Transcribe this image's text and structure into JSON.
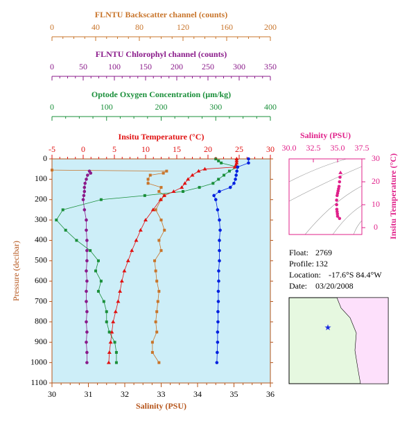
{
  "chart_data": [
    {
      "type": "profile",
      "y_label": "Pressure (decibar)",
      "ylim": [
        0,
        1100
      ],
      "yticks": [
        0,
        100,
        200,
        300,
        400,
        500,
        600,
        700,
        800,
        900,
        1000,
        1100
      ],
      "y_color": "#b5541a",
      "background": "#cdeef8",
      "series": [
        {
          "name": "FLNTU Backscatter channel (counts)",
          "color": "#c8742a",
          "marker": "square",
          "xlim": [
            0,
            200
          ],
          "xticks": [
            0,
            40,
            80,
            120,
            160,
            200
          ],
          "pressure": [
            55,
            60,
            70,
            80,
            100,
            120,
            140,
            160,
            180,
            200,
            250,
            300,
            350,
            400,
            450,
            500,
            550,
            600,
            650,
            700,
            750,
            800,
            850,
            900,
            950,
            1000
          ],
          "values": [
            0,
            105,
            102,
            90,
            88,
            88,
            100,
            98,
            103,
            100,
            95,
            100,
            103,
            98,
            100,
            94,
            95,
            96,
            98,
            97,
            96,
            95,
            96,
            92,
            92,
            98
          ]
        },
        {
          "name": "FLNTU Chlorophyl channel (counts)",
          "color": "#8a1a8a",
          "marker": "circle",
          "xlim": [
            0,
            350
          ],
          "xticks": [
            0,
            50,
            100,
            150,
            200,
            250,
            300,
            350
          ],
          "pressure": [
            60,
            70,
            80,
            100,
            120,
            140,
            160,
            180,
            200,
            250,
            300,
            350,
            400,
            450,
            500,
            550,
            600,
            650,
            700,
            750,
            800,
            850,
            900,
            950,
            1000
          ],
          "values": [
            60,
            62,
            57,
            55,
            53,
            52,
            52,
            51,
            50,
            52,
            55,
            55,
            56,
            56,
            56,
            55,
            56,
            55,
            55,
            56,
            55,
            56,
            55,
            56,
            56
          ]
        },
        {
          "name": "Optode Oxygen Concentration (µm/kg)",
          "color": "#1a8f3a",
          "marker": "square",
          "xlim": [
            0,
            400
          ],
          "xticks": [
            0,
            100,
            200,
            300,
            400
          ],
          "pressure": [
            0,
            10,
            20,
            40,
            60,
            80,
            100,
            120,
            140,
            160,
            180,
            200,
            250,
            300,
            350,
            400,
            450,
            500,
            550,
            600,
            650,
            700,
            750,
            800,
            850,
            900,
            950,
            1000
          ],
          "values": [
            300,
            305,
            310,
            340,
            325,
            315,
            305,
            295,
            270,
            240,
            170,
            90,
            20,
            8,
            25,
            45,
            70,
            85,
            80,
            90,
            85,
            95,
            100,
            100,
            105,
            115,
            118,
            118
          ]
        },
        {
          "name": "Insitu Temperature (°C)",
          "color": "#e01010",
          "marker": "triangle",
          "xlim": [
            -5,
            30
          ],
          "xticks": [
            -5,
            0,
            5,
            10,
            15,
            20,
            25,
            30
          ],
          "pressure": [
            0,
            10,
            20,
            30,
            40,
            50,
            60,
            80,
            100,
            120,
            140,
            160,
            180,
            200,
            250,
            300,
            350,
            400,
            450,
            500,
            550,
            600,
            650,
            700,
            750,
            800,
            850,
            900,
            950,
            1000
          ],
          "values": [
            24.6,
            24.6,
            24.6,
            24.5,
            24.3,
            19.5,
            18.5,
            17.5,
            16.8,
            16.3,
            15.8,
            14.5,
            13,
            12.4,
            11.2,
            10,
            9.2,
            8.5,
            7.8,
            7.2,
            6.6,
            6.2,
            5.9,
            5.6,
            5.2,
            4.8,
            4.6,
            4.4,
            4.2,
            4.1
          ]
        },
        {
          "name": "Salinity (PSU)",
          "color": "#0020e0",
          "marker": "circle",
          "xlim": [
            30,
            36
          ],
          "xticks": [
            30,
            31,
            32,
            33,
            34,
            35,
            36
          ],
          "pressure": [
            0,
            20,
            40,
            60,
            80,
            100,
            120,
            140,
            160,
            180,
            200,
            250,
            300,
            350,
            400,
            450,
            500,
            550,
            600,
            650,
            700,
            750,
            800,
            850,
            900,
            950,
            1000
          ],
          "values": [
            35.4,
            35.4,
            35.1,
            35.08,
            35.06,
            35.04,
            35,
            34.9,
            34.6,
            34.45,
            34.5,
            34.55,
            34.6,
            34.62,
            34.6,
            34.6,
            34.6,
            34.58,
            34.58,
            34.57,
            34.57,
            34.56,
            34.56,
            34.55,
            34.55,
            34.54,
            34.53
          ]
        }
      ]
    },
    {
      "type": "scatter",
      "x_label": "Salinity (PSU)",
      "y_label": "Insitu Temperature (°C)",
      "color": "#e0208a",
      "xlim": [
        30,
        37.5
      ],
      "xticks": [
        {
          "value": 30,
          "label": "30.0"
        },
        32.5,
        {
          "value": 35,
          "label": "35.0"
        },
        37.5
      ],
      "ylim": [
        -3,
        30
      ],
      "yticks": [
        0,
        10,
        20,
        30
      ],
      "x": [
        35.3,
        35.25,
        35.2,
        35.15,
        35.1,
        35.05,
        35.0,
        34.95,
        34.9,
        34.9,
        34.92,
        34.95,
        34.98,
        35.0,
        35.2
      ],
      "y": [
        24,
        22,
        20,
        18,
        17,
        16,
        15,
        14,
        12,
        10,
        8,
        7,
        6,
        5,
        4
      ]
    }
  ],
  "float_info": [
    {
      "label": "Float:",
      "value": "2769"
    },
    {
      "label": "Profile:",
      "value": "132"
    },
    {
      "label": "Location:",
      "value": "-17.6°S  84.4°W"
    },
    {
      "label": "Date:",
      "value": "03/20/2008"
    }
  ]
}
